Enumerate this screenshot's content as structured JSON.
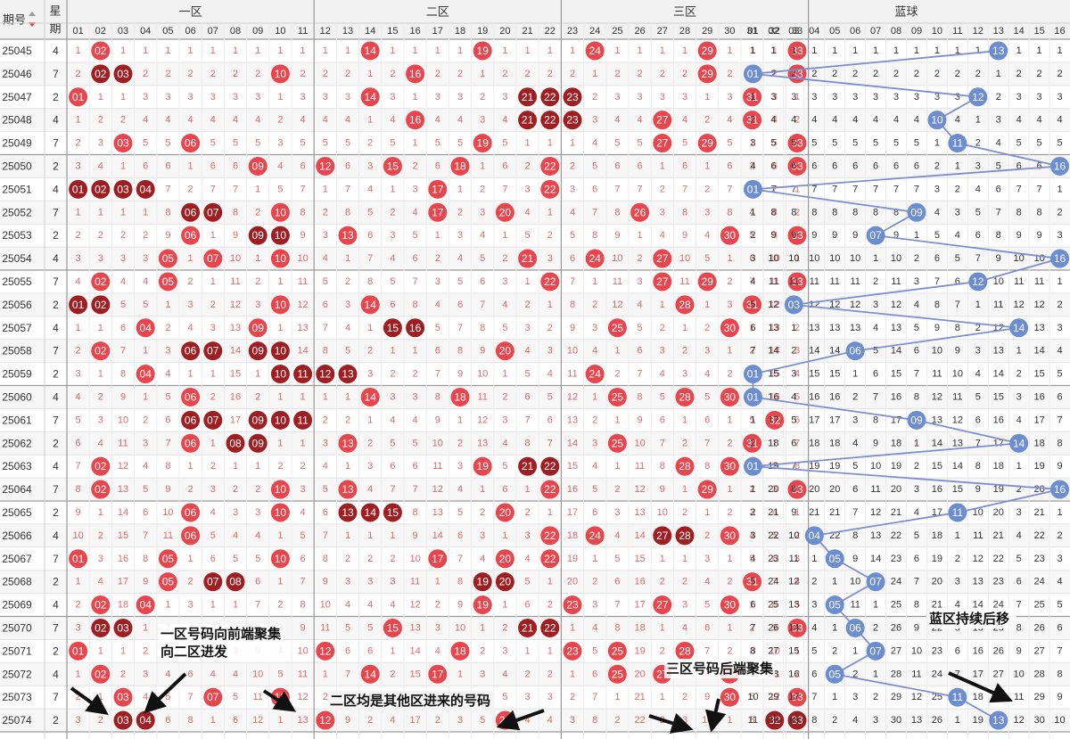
{
  "header": {
    "issue_label": "期号",
    "weekday_label": "星期",
    "zones": [
      "一区",
      "二区",
      "三区",
      "蓝球"
    ]
  },
  "columns": {
    "red": [
      "01",
      "02",
      "03",
      "04",
      "05",
      "06",
      "07",
      "08",
      "09",
      "10",
      "11",
      "12",
      "13",
      "14",
      "15",
      "16",
      "17",
      "18",
      "19",
      "20",
      "21",
      "22",
      "23",
      "24",
      "25",
      "26",
      "27",
      "28",
      "29",
      "30",
      "31",
      "32",
      "33"
    ],
    "blue": [
      "01",
      "02",
      "03",
      "04",
      "05",
      "06",
      "07",
      "08",
      "09",
      "10",
      "11",
      "12",
      "13",
      "14",
      "15",
      "16"
    ]
  },
  "rows": [
    {
      "issue": "25045",
      "weekday": "4",
      "red": [
        2,
        14,
        19,
        24,
        29,
        33
      ],
      "blue": 13
    },
    {
      "issue": "25046",
      "weekday": "7",
      "red": [
        2,
        3,
        10,
        16,
        29,
        33
      ],
      "blue": 1
    },
    {
      "issue": "25047",
      "weekday": "2",
      "red": [
        1,
        14,
        21,
        22,
        23,
        31
      ],
      "blue": 12
    },
    {
      "issue": "25048",
      "weekday": "4",
      "red": [
        16,
        21,
        22,
        23,
        27,
        31
      ],
      "blue": 10
    },
    {
      "issue": "25049",
      "weekday": "7",
      "red": [
        3,
        6,
        19,
        27,
        29,
        33
      ],
      "blue": 11
    },
    {
      "issue": "25050",
      "weekday": "2",
      "red": [
        9,
        12,
        15,
        18,
        22,
        33
      ],
      "blue": 16
    },
    {
      "issue": "25051",
      "weekday": "4",
      "red": [
        1,
        2,
        3,
        4,
        17,
        22
      ],
      "blue": 1
    },
    {
      "issue": "25052",
      "weekday": "7",
      "red": [
        6,
        7,
        10,
        17,
        20,
        26
      ],
      "blue": 9
    },
    {
      "issue": "25053",
      "weekday": "2",
      "red": [
        6,
        9,
        10,
        13,
        30,
        33
      ],
      "blue": 7
    },
    {
      "issue": "25054",
      "weekday": "4",
      "red": [
        5,
        7,
        10,
        21,
        24,
        27
      ],
      "blue": 16
    },
    {
      "issue": "25055",
      "weekday": "7",
      "red": [
        2,
        5,
        22,
        27,
        29,
        33
      ],
      "blue": 12
    },
    {
      "issue": "25056",
      "weekday": "2",
      "red": [
        1,
        2,
        10,
        14,
        28,
        31
      ],
      "blue": 3
    },
    {
      "issue": "25057",
      "weekday": "4",
      "red": [
        4,
        9,
        15,
        16,
        25,
        30
      ],
      "blue": 14
    },
    {
      "issue": "25058",
      "weekday": "7",
      "red": [
        2,
        6,
        7,
        9,
        10,
        20
      ],
      "blue": 6
    },
    {
      "issue": "25059",
      "weekday": "2",
      "red": [
        4,
        10,
        11,
        12,
        13,
        24
      ],
      "blue": 1
    },
    {
      "issue": "25060",
      "weekday": "4",
      "red": [
        6,
        14,
        18,
        25,
        28,
        30
      ],
      "blue": 1
    },
    {
      "issue": "25061",
      "weekday": "7",
      "red": [
        6,
        7,
        9,
        10,
        11,
        32
      ],
      "blue": 9
    },
    {
      "issue": "25062",
      "weekday": "2",
      "red": [
        6,
        8,
        9,
        13,
        25,
        31
      ],
      "blue": 14
    },
    {
      "issue": "25063",
      "weekday": "4",
      "red": [
        2,
        19,
        21,
        22,
        28,
        30
      ],
      "blue": 1
    },
    {
      "issue": "25064",
      "weekday": "7",
      "red": [
        2,
        10,
        13,
        22,
        29,
        33
      ],
      "blue": 16
    },
    {
      "issue": "25065",
      "weekday": "2",
      "red": [
        6,
        10,
        13,
        14,
        15,
        20
      ],
      "blue": 11
    },
    {
      "issue": "25066",
      "weekday": "4",
      "red": [
        6,
        22,
        24,
        27,
        28,
        30
      ],
      "blue": 4
    },
    {
      "issue": "25067",
      "weekday": "7",
      "red": [
        1,
        5,
        10,
        17,
        20,
        22
      ],
      "blue": 5
    },
    {
      "issue": "25068",
      "weekday": "2",
      "red": [
        5,
        7,
        8,
        19,
        20,
        31
      ],
      "blue": 7
    },
    {
      "issue": "25069",
      "weekday": "4",
      "red": [
        2,
        4,
        19,
        23,
        27,
        30
      ],
      "blue": 5
    },
    {
      "issue": "25070",
      "weekday": "7",
      "red": [
        2,
        3,
        15,
        21,
        22,
        33
      ],
      "blue": 6
    },
    {
      "issue": "25071",
      "weekday": "2",
      "red": [
        1,
        12,
        18,
        23,
        25,
        28
      ],
      "blue": 7
    },
    {
      "issue": "25072",
      "weekday": "4",
      "red": [
        2,
        14,
        17,
        25,
        27,
        30
      ],
      "blue": 5
    },
    {
      "issue": "25073",
      "weekday": "7",
      "red": [
        3,
        7,
        10,
        30,
        33
      ],
      "blue": 11
    },
    {
      "issue": "25074",
      "weekday": "2",
      "red": [
        3,
        4,
        12,
        20,
        32,
        33
      ],
      "blue": 13
    }
  ],
  "annotations": [
    "一区号码向前端聚集\n向二区进发",
    "二区均是其他区进来的号码",
    "三区号码后端聚集",
    "蓝区持续后移"
  ],
  "colors": {
    "ball_red": "#e8454c",
    "ball_dark": "#9e1e22",
    "ball_blue": "#6c8ed0",
    "miss_text": "#e06a6a",
    "header_bg": "#f2f2f2",
    "line_blue": "#7d8fd0",
    "arrow": "#111111"
  }
}
